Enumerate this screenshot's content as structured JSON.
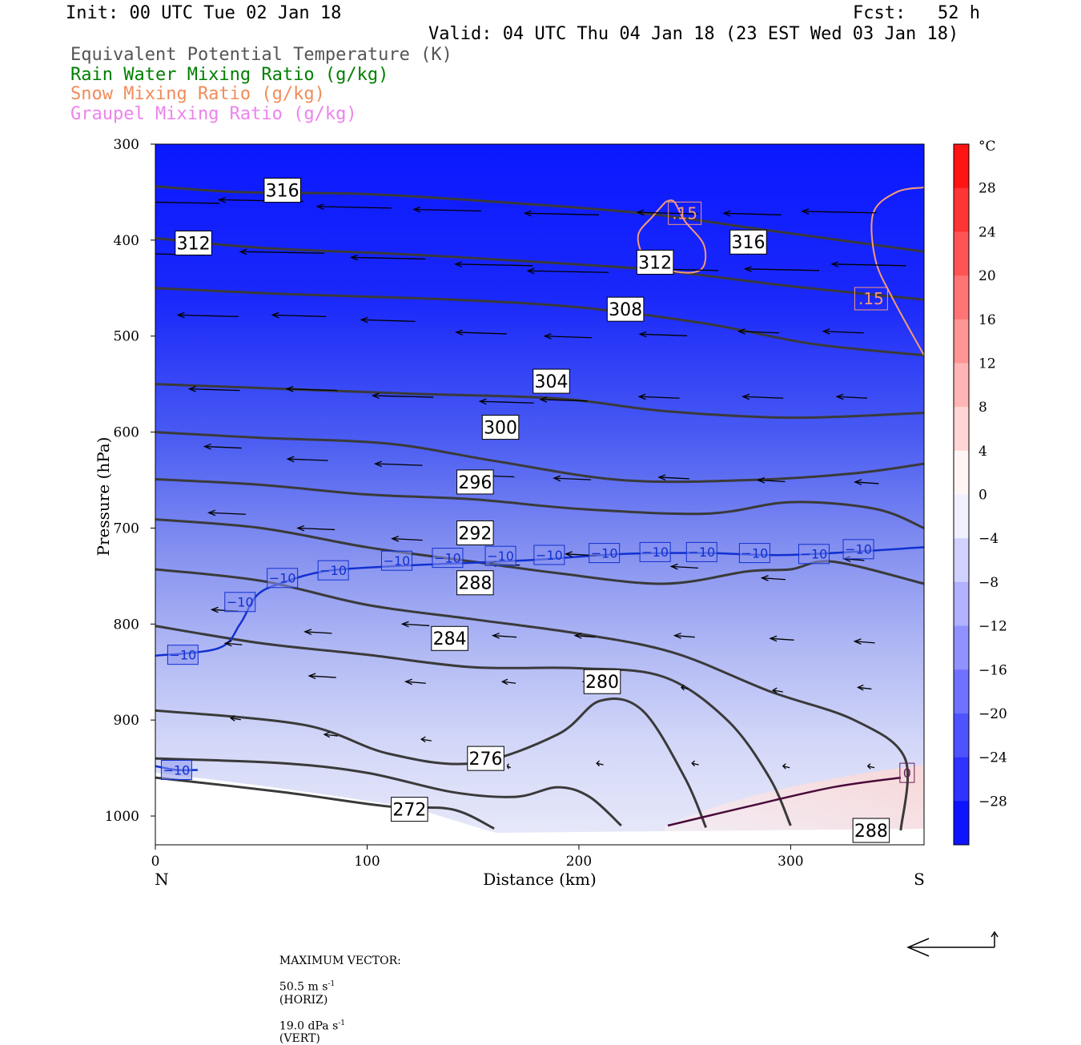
{
  "header": {
    "init": "Init: 00 UTC Tue 02 Jan 18",
    "fcst": "Fcst:   52 h",
    "valid": "Valid: 04 UTC Thu 04 Jan 18 (23 EST Wed 03 Jan 18)"
  },
  "legend_fields": [
    {
      "label": "Equivalent Potential Temperature (K)",
      "color": "#555555"
    },
    {
      "label": "Rain Water Mixing Ratio (g/kg)",
      "color": "#008000"
    },
    {
      "label": "Snow Mixing Ratio (g/kg)",
      "color": "#f08c5a"
    },
    {
      "label": "Graupel Mixing Ratio (g/kg)",
      "color": "#ee82ee"
    }
  ],
  "chart_data": {
    "type": "cross-section",
    "xlabel": "Distance (km)",
    "ylabel": "Pressure (hPa)",
    "xlim": [
      0,
      363
    ],
    "ylim": [
      300,
      1030
    ],
    "x_ticks": [
      0,
      100,
      200,
      300
    ],
    "y_ticks": [
      300,
      400,
      500,
      600,
      700,
      800,
      900,
      1000
    ],
    "x_end_labels": {
      "left": "N",
      "right": "S"
    },
    "colorbar": {
      "unit": "°C",
      "ticks": [
        28,
        24,
        20,
        16,
        12,
        8,
        4,
        0,
        -4,
        -8,
        -12,
        -16,
        -20,
        -24,
        -28
      ]
    },
    "theta_e_contours": [
      {
        "value": 316,
        "points": [
          [
            0,
            344
          ],
          [
            40,
            350
          ],
          [
            100,
            352
          ],
          [
            160,
            360
          ],
          [
            230,
            372
          ],
          [
            290,
            390
          ],
          [
            363,
            412
          ]
        ],
        "labels": [
          [
            60,
            348
          ],
          [
            280,
            402
          ]
        ]
      },
      {
        "value": 312,
        "points": [
          [
            0,
            398
          ],
          [
            50,
            408
          ],
          [
            120,
            415
          ],
          [
            190,
            424
          ],
          [
            240,
            432
          ],
          [
            300,
            448
          ],
          [
            363,
            462
          ]
        ],
        "labels": [
          [
            18,
            403
          ],
          [
            236,
            423
          ]
        ]
      },
      {
        "value": 308,
        "points": [
          [
            0,
            450
          ],
          [
            60,
            456
          ],
          [
            140,
            462
          ],
          [
            200,
            470
          ],
          [
            260,
            487
          ],
          [
            310,
            508
          ],
          [
            363,
            520
          ]
        ],
        "labels": [
          [
            222,
            472
          ]
        ]
      },
      {
        "value": 304,
        "points": [
          [
            0,
            550
          ],
          [
            60,
            555
          ],
          [
            120,
            560
          ],
          [
            190,
            565
          ],
          [
            240,
            578
          ],
          [
            300,
            585
          ],
          [
            363,
            580
          ]
        ],
        "labels": [
          [
            187,
            547
          ]
        ]
      },
      {
        "value": 300,
        "points": [
          [
            0,
            600
          ],
          [
            50,
            606
          ],
          [
            110,
            612
          ],
          [
            160,
            630
          ],
          [
            220,
            650
          ],
          [
            280,
            650
          ],
          [
            330,
            643
          ],
          [
            363,
            633
          ]
        ],
        "labels": [
          [
            163,
            595
          ]
        ]
      },
      {
        "value": 296,
        "points": [
          [
            0,
            649
          ],
          [
            50,
            655
          ],
          [
            100,
            665
          ],
          [
            150,
            670
          ],
          [
            200,
            680
          ],
          [
            260,
            685
          ],
          [
            300,
            673
          ],
          [
            340,
            680
          ],
          [
            363,
            700
          ]
        ],
        "labels": [
          [
            151,
            652
          ]
        ]
      },
      {
        "value": 292,
        "points": [
          [
            0,
            691
          ],
          [
            50,
            700
          ],
          [
            100,
            720
          ],
          [
            150,
            735
          ],
          [
            190,
            747
          ],
          [
            240,
            758
          ],
          [
            280,
            745
          ],
          [
            300,
            743
          ],
          [
            320,
            735
          ],
          [
            363,
            758
          ]
        ],
        "labels": [
          [
            151,
            705
          ]
        ]
      },
      {
        "value": 288,
        "points": [
          [
            0,
            743
          ],
          [
            50,
            755
          ],
          [
            100,
            780
          ],
          [
            150,
            795
          ],
          [
            200,
            810
          ],
          [
            245,
            830
          ],
          [
            290,
            870
          ],
          [
            330,
            900
          ],
          [
            354,
            940
          ],
          [
            352,
            1015
          ]
        ],
        "labels": [
          [
            151,
            757
          ],
          [
            338,
            1015
          ]
        ]
      },
      {
        "value": 284,
        "points": [
          [
            0,
            802
          ],
          [
            50,
            820
          ],
          [
            100,
            832
          ],
          [
            150,
            845
          ],
          [
            200,
            846
          ],
          [
            240,
            855
          ],
          [
            270,
            900
          ],
          [
            290,
            960
          ],
          [
            300,
            1010
          ]
        ],
        "labels": [
          [
            139,
            815
          ]
        ]
      },
      {
        "value": 280,
        "points": [
          [
            0,
            890
          ],
          [
            70,
            905
          ],
          [
            110,
            935
          ],
          [
            150,
            945
          ],
          [
            190,
            915
          ],
          [
            210,
            880
          ],
          [
            230,
            890
          ],
          [
            250,
            960
          ],
          [
            260,
            1012
          ]
        ],
        "labels": [
          [
            211,
            860
          ]
        ]
      },
      {
        "value": 276,
        "points": [
          [
            0,
            940
          ],
          [
            60,
            945
          ],
          [
            100,
            955
          ],
          [
            140,
            975
          ],
          [
            170,
            980
          ],
          [
            190,
            970
          ],
          [
            205,
            980
          ],
          [
            220,
            1010
          ]
        ],
        "labels": [
          [
            156,
            940
          ]
        ]
      },
      {
        "value": 272,
        "points": [
          [
            0,
            960
          ],
          [
            60,
            975
          ],
          [
            110,
            990
          ],
          [
            140,
            993
          ],
          [
            160,
            1013
          ]
        ],
        "labels": [
          [
            120,
            993
          ]
        ]
      }
    ],
    "temperature_contours": [
      {
        "value": -10,
        "points": [
          [
            0,
            833
          ],
          [
            30,
            825
          ],
          [
            40,
            800
          ],
          [
            48,
            770
          ],
          [
            60,
            757
          ],
          [
            80,
            745
          ],
          [
            110,
            740
          ],
          [
            140,
            737
          ],
          [
            180,
            733
          ],
          [
            220,
            727
          ],
          [
            260,
            726
          ],
          [
            300,
            728
          ],
          [
            363,
            720
          ]
        ],
        "labels": [
          [
            13,
            832
          ],
          [
            40,
            777
          ],
          [
            60,
            752
          ],
          [
            84,
            744
          ],
          [
            114,
            734
          ],
          [
            138,
            731
          ],
          [
            163,
            729
          ],
          [
            186,
            728
          ],
          [
            212,
            726
          ],
          [
            236,
            725
          ],
          [
            258,
            725
          ],
          [
            283,
            726
          ],
          [
            311,
            727
          ],
          [
            332,
            722
          ]
        ]
      },
      {
        "value": -10,
        "points": [
          [
            0,
            948
          ],
          [
            10,
            952
          ],
          [
            20,
            952
          ]
        ],
        "labels": [
          [
            10,
            952
          ]
        ]
      },
      {
        "value": 0,
        "points": [
          [
            242,
            1010
          ],
          [
            280,
            990
          ],
          [
            320,
            970
          ],
          [
            352,
            960
          ]
        ],
        "labels": [
          [
            355,
            955
          ]
        ]
      }
    ],
    "snow_mixing_ratio_contours": [
      {
        "value": 0.15,
        "points": [
          [
            241,
            360
          ],
          [
            235,
            375
          ],
          [
            228,
            395
          ],
          [
            232,
            420
          ],
          [
            246,
            433
          ],
          [
            258,
            430
          ],
          [
            259,
            405
          ],
          [
            250,
            380
          ],
          [
            245,
            360
          ],
          [
            241,
            360
          ]
        ],
        "labels": [
          [
            250,
            372
          ]
        ]
      },
      {
        "value": 0.15,
        "points": [
          [
            363,
            345
          ],
          [
            350,
            350
          ],
          [
            339,
            372
          ],
          [
            340,
            420
          ],
          [
            348,
            460
          ],
          [
            363,
            520
          ]
        ],
        "labels": [
          [
            338,
            461
          ]
        ]
      }
    ],
    "wind_vectors": [
      [
        8,
        360,
        -28
      ],
      [
        50,
        358,
        -25
      ],
      [
        94,
        365,
        -22
      ],
      [
        138,
        368,
        -20
      ],
      [
        192,
        372,
        -22
      ],
      [
        242,
        371,
        -18
      ],
      [
        282,
        372,
        -17
      ],
      [
        323,
        370,
        -22
      ],
      [
        9,
        414,
        -18
      ],
      [
        60,
        412,
        -25
      ],
      [
        110,
        418,
        -22
      ],
      [
        160,
        425,
        -23
      ],
      [
        195,
        432,
        -24
      ],
      [
        250,
        430,
        -20
      ],
      [
        296,
        430,
        -22
      ],
      [
        337,
        425,
        -22
      ],
      [
        25,
        478,
        -18
      ],
      [
        68,
        478,
        -16
      ],
      [
        110,
        483,
        -16
      ],
      [
        154,
        496,
        -15
      ],
      [
        195,
        500,
        -14
      ],
      [
        240,
        498,
        -14
      ],
      [
        285,
        495,
        -12
      ],
      [
        325,
        495,
        -12
      ],
      [
        28,
        555,
        -15
      ],
      [
        74,
        555,
        -15
      ],
      [
        117,
        562,
        -18
      ],
      [
        166,
        568,
        -16
      ],
      [
        193,
        566,
        -14
      ],
      [
        238,
        563,
        -12
      ],
      [
        287,
        563,
        -12
      ],
      [
        329,
        563,
        -9
      ],
      [
        32,
        615,
        -11
      ],
      [
        72,
        628,
        -12
      ],
      [
        115,
        633,
        -14
      ],
      [
        160,
        645,
        -12
      ],
      [
        197,
        648,
        -11
      ],
      [
        245,
        647,
        -9
      ],
      [
        291,
        650,
        -8
      ],
      [
        336,
        652,
        -7
      ],
      [
        34,
        684,
        -11
      ],
      [
        76,
        700,
        -11
      ],
      [
        119,
        711,
        -9
      ],
      [
        165,
        737,
        -9
      ],
      [
        201,
        727,
        -9
      ],
      [
        250,
        740,
        -8
      ],
      [
        292,
        752,
        -7
      ],
      [
        330,
        732,
        -6
      ],
      [
        33,
        785,
        -8
      ],
      [
        77,
        808,
        -8
      ],
      [
        123,
        800,
        -8
      ],
      [
        165,
        812,
        -7
      ],
      [
        203,
        812,
        -6
      ],
      [
        250,
        812,
        -6
      ],
      [
        296,
        815,
        -7
      ],
      [
        335,
        818,
        -6
      ],
      [
        37,
        820,
        -5
      ],
      [
        79,
        854,
        -8
      ],
      [
        123,
        860,
        -6
      ],
      [
        167,
        860,
        -4
      ],
      [
        206,
        860,
        -5
      ],
      [
        250,
        866,
        -2
      ],
      [
        294,
        869,
        -3
      ],
      [
        335,
        866,
        -4
      ],
      [
        38,
        898,
        -3
      ],
      [
        83,
        915,
        -4
      ],
      [
        128,
        920,
        -3
      ],
      [
        167,
        948,
        -1
      ],
      [
        210,
        945,
        -2
      ],
      [
        255,
        945,
        -2
      ],
      [
        298,
        948,
        -2
      ],
      [
        338,
        948,
        -2
      ]
    ]
  },
  "footer": {
    "max_vector_label": "MAXIMUM VECTOR:",
    "horiz_value": "50.5 m s",
    "horiz_unit": "(HORIZ)",
    "vert_value": "19.0 dPa s",
    "vert_unit": "(VERT)",
    "exponent": "-1"
  }
}
